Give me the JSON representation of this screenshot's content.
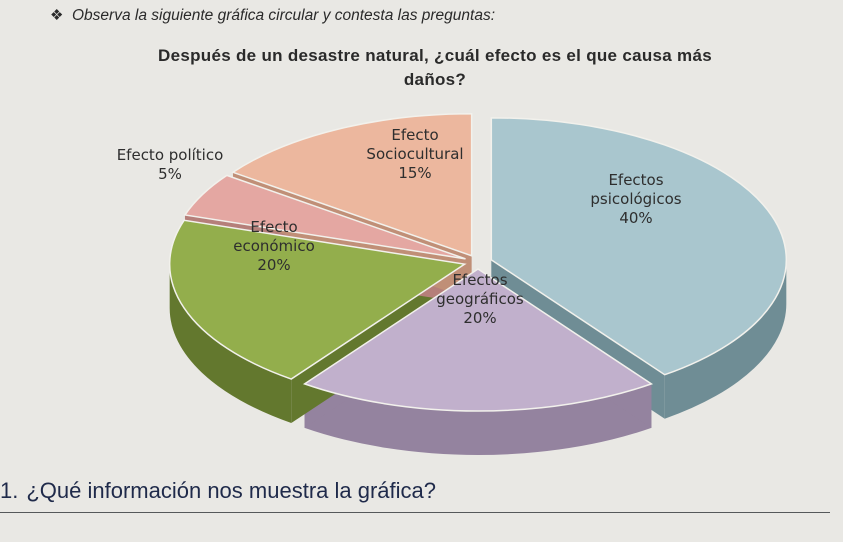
{
  "instruction": {
    "bullet": "❖",
    "text": "Observa la siguiente gráfica circular y contesta las preguntas:"
  },
  "chart_data": {
    "type": "pie",
    "title_line1": "Después de un desastre natural, ¿cuál efecto es el que causa más",
    "title_line2": "daños?",
    "slices": [
      {
        "label_lines": [
          "Efectos",
          "psicológicos",
          "40%"
        ],
        "value": 40,
        "color": "#a9c6ce",
        "side": "#6f8d95"
      },
      {
        "label_lines": [
          "Efectos",
          "geográficos",
          "20%"
        ],
        "value": 20,
        "color": "#c1b0cc",
        "side": "#94839f"
      },
      {
        "label_lines": [
          "Efecto",
          "económico",
          "20%"
        ],
        "value": 20,
        "color": "#93ae4c",
        "side": "#63782e"
      },
      {
        "label_lines": [
          "Efecto político",
          "5%"
        ],
        "value": 5,
        "color": "#e4a7a2",
        "side": "#b57f7a"
      },
      {
        "label_lines": [
          "Efecto",
          "Sociocultural",
          "15%"
        ],
        "value": 15,
        "color": "#ecb79e",
        "side": "#c08f77"
      }
    ]
  },
  "question": {
    "number": "1.",
    "text": "¿Qué información nos muestra la gráfica?"
  }
}
